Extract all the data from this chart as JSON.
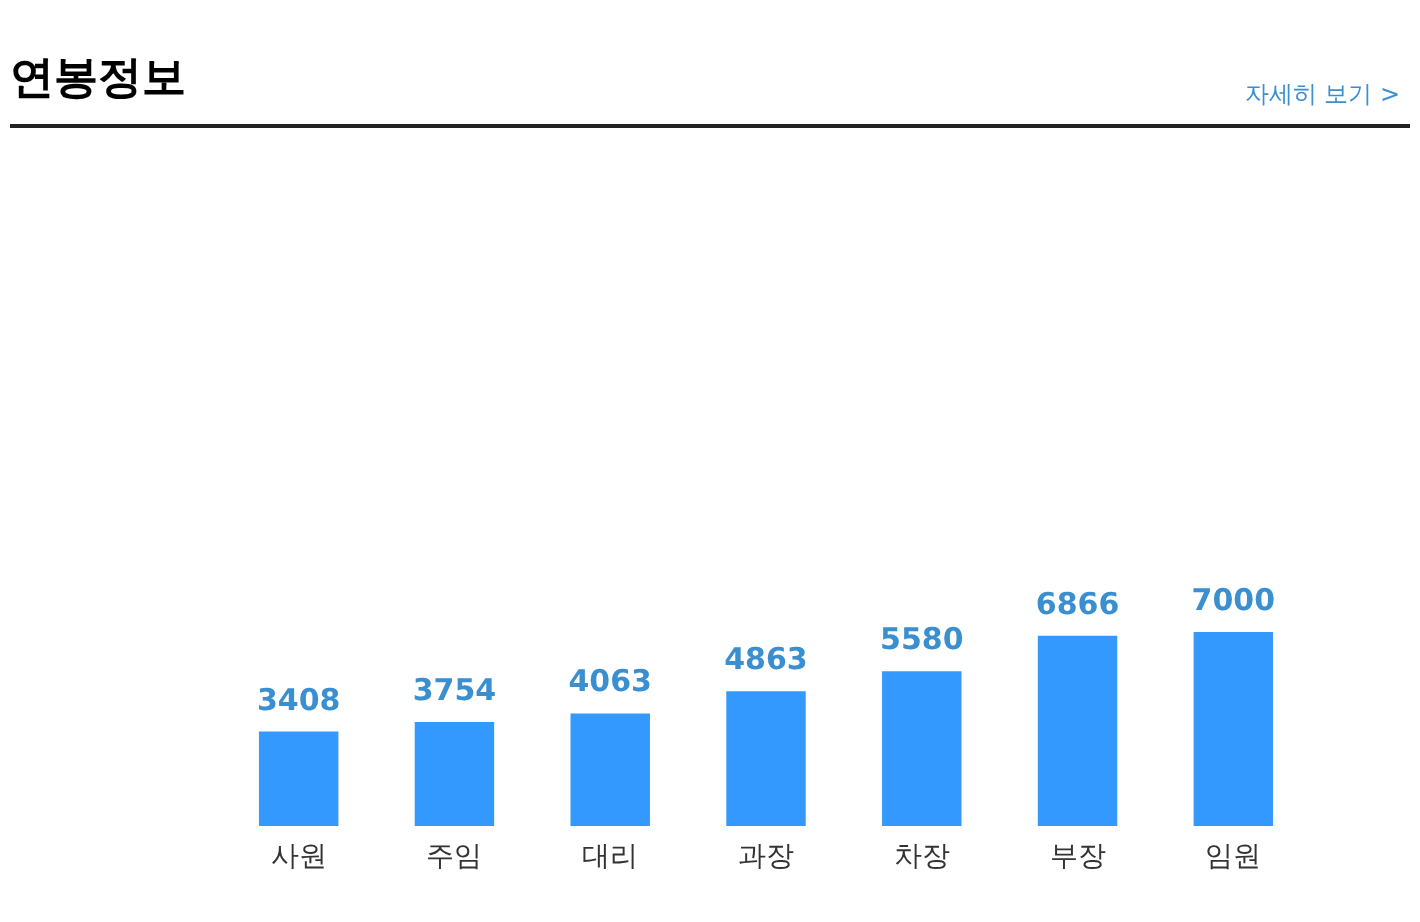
{
  "chart_data": {
    "type": "bar",
    "title": "연봉정보",
    "annotations": [
      "자세히 보기 >"
    ],
    "categories": [
      "사원",
      "주임",
      "대리",
      "과장",
      "차장",
      "부장",
      "임원"
    ],
    "values": [
      3408,
      3754,
      4063,
      4863,
      5580,
      6866,
      7000
    ],
    "color": "#3399ff",
    "data_labels": true
  }
}
